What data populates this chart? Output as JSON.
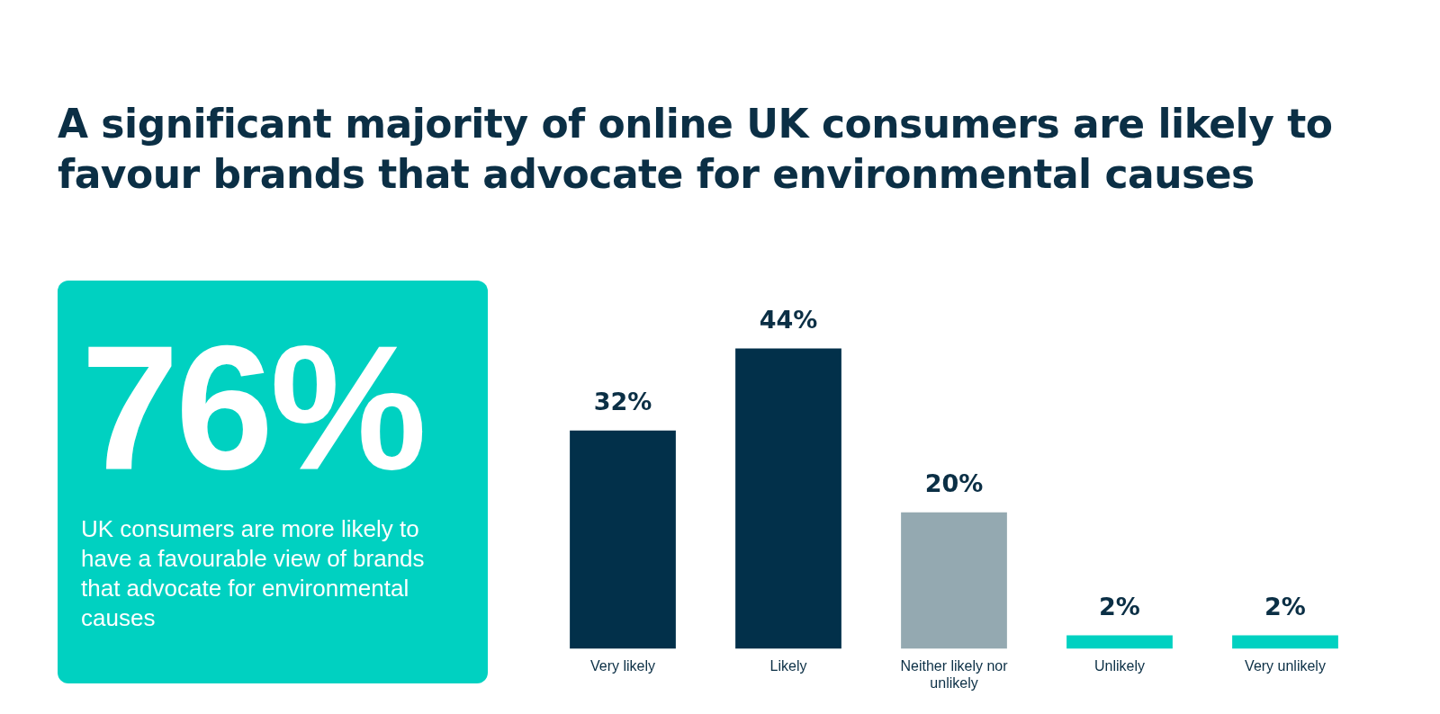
{
  "chart_data": [
    {
      "type": "bar",
      "title": "A significant majority of online UK consumers are likely to favour brands that advocate for environmental causes",
      "categories": [
        "Very likely",
        "Likely",
        "Neither likely nor unlikely",
        "Unlikely",
        "Very unlikely"
      ],
      "values": [
        32,
        44,
        20,
        2,
        2
      ],
      "colors": [
        "#02304a",
        "#02304a",
        "#94a9b1",
        "#00d1c1",
        "#00d1c1"
      ],
      "value_labels": [
        "32%",
        "44%",
        "20%",
        "2%",
        "2%"
      ],
      "grid": false,
      "legend": false
    },
    {
      "type": "other",
      "annotations": [
        "76%",
        "UK consumers are more likely to have a favourable view of brands that advocate for environmental causes"
      ]
    }
  ]
}
